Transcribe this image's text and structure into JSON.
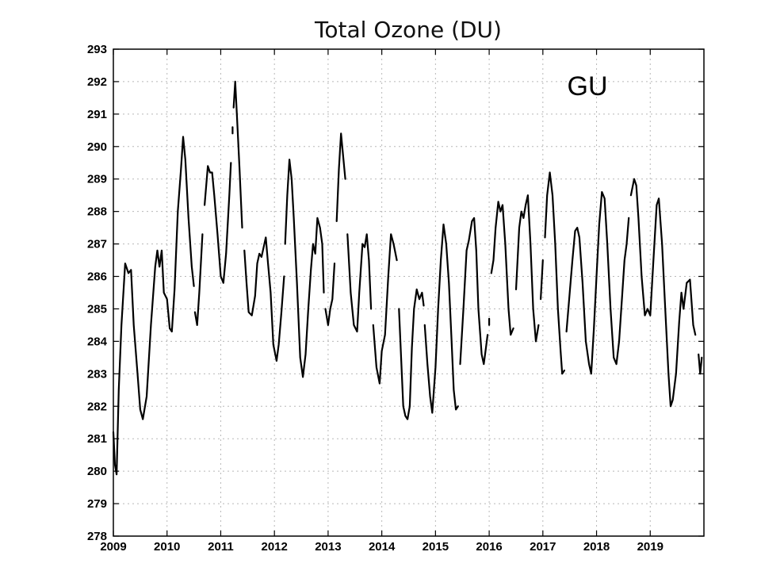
{
  "chart_data": {
    "type": "line",
    "title": "Total Ozone (DU)",
    "xlabel": "",
    "ylabel": "",
    "annotation": "GU",
    "xlim": [
      2009,
      2020
    ],
    "ylim": [
      278,
      293
    ],
    "grid": true,
    "x_ticks": [
      "2009",
      "2010",
      "2011",
      "2012",
      "2013",
      "2014",
      "2015",
      "2016",
      "2017",
      "2018",
      "2019"
    ],
    "y_ticks": [
      "278",
      "279",
      "280",
      "281",
      "282",
      "283",
      "284",
      "285",
      "286",
      "287",
      "288",
      "289",
      "290",
      "291",
      "292",
      "293"
    ],
    "series": [
      {
        "segments": [
          [
            [
              2009.0,
              281.2
            ],
            [
              2009.03,
              280.2
            ],
            [
              2009.06,
              279.9
            ],
            [
              2009.1,
              282.5
            ],
            [
              2009.15,
              284.5
            ],
            [
              2009.22,
              286.4
            ],
            [
              2009.28,
              286.1
            ],
            [
              2009.33,
              286.2
            ],
            [
              2009.38,
              284.5
            ],
            [
              2009.45,
              283.0
            ],
            [
              2009.5,
              281.9
            ],
            [
              2009.55,
              281.6
            ],
            [
              2009.62,
              282.3
            ],
            [
              2009.7,
              284.5
            ],
            [
              2009.78,
              286.3
            ],
            [
              2009.82,
              286.8
            ],
            [
              2009.86,
              286.3
            ],
            [
              2009.9,
              286.8
            ],
            [
              2009.94,
              285.5
            ],
            [
              2010.0,
              285.3
            ],
            [
              2010.05,
              284.4
            ],
            [
              2010.09,
              284.3
            ],
            [
              2010.14,
              285.6
            ],
            [
              2010.2,
              288.0
            ],
            [
              2010.26,
              289.3
            ],
            [
              2010.3,
              290.3
            ],
            [
              2010.34,
              289.6
            ],
            [
              2010.4,
              287.8
            ],
            [
              2010.46,
              286.3
            ],
            [
              2010.5,
              285.7
            ]
          ],
          [
            [
              2010.52,
              284.9
            ],
            [
              2010.56,
              284.5
            ],
            [
              2010.6,
              285.5
            ],
            [
              2010.66,
              287.3
            ]
          ],
          [
            [
              2010.7,
              288.2
            ],
            [
              2010.76,
              289.4
            ],
            [
              2010.8,
              289.2
            ],
            [
              2010.84,
              289.2
            ],
            [
              2010.88,
              288.5
            ],
            [
              2010.94,
              287.3
            ],
            [
              2011.0,
              286.0
            ],
            [
              2011.05,
              285.8
            ],
            [
              2011.1,
              286.7
            ],
            [
              2011.16,
              288.5
            ],
            [
              2011.19,
              289.5
            ]
          ],
          [
            [
              2011.22,
              290.5
            ]
          ],
          [
            [
              2011.24,
              291.2
            ],
            [
              2011.27,
              292.0
            ],
            [
              2011.3,
              291.0
            ],
            [
              2011.35,
              289.3
            ],
            [
              2011.4,
              287.5
            ]
          ],
          [
            [
              2011.44,
              286.8
            ],
            [
              2011.48,
              285.8
            ],
            [
              2011.52,
              284.9
            ],
            [
              2011.58,
              284.8
            ],
            [
              2011.64,
              285.4
            ],
            [
              2011.68,
              286.4
            ],
            [
              2011.72,
              286.7
            ],
            [
              2011.76,
              286.6
            ],
            [
              2011.8,
              286.9
            ],
            [
              2011.84,
              287.2
            ],
            [
              2011.88,
              286.4
            ],
            [
              2011.93,
              285.5
            ],
            [
              2011.98,
              283.9
            ],
            [
              2012.04,
              283.4
            ],
            [
              2012.08,
              283.9
            ],
            [
              2012.13,
              284.9
            ],
            [
              2012.18,
              286.0
            ]
          ],
          [
            [
              2012.2,
              287.0
            ],
            [
              2012.24,
              288.5
            ],
            [
              2012.28,
              289.6
            ],
            [
              2012.32,
              289.0
            ],
            [
              2012.36,
              287.8
            ],
            [
              2012.42,
              285.8
            ],
            [
              2012.48,
              283.5
            ],
            [
              2012.53,
              282.9
            ],
            [
              2012.58,
              283.6
            ],
            [
              2012.63,
              285.0
            ],
            [
              2012.68,
              286.2
            ],
            [
              2012.72,
              287.0
            ],
            [
              2012.76,
              286.7
            ],
            [
              2012.8,
              287.8
            ],
            [
              2012.85,
              287.5
            ],
            [
              2012.89,
              287.0
            ],
            [
              2012.92,
              285.5
            ]
          ],
          [
            [
              2012.95,
              285.0
            ],
            [
              2013.0,
              284.5
            ],
            [
              2013.04,
              285.0
            ],
            [
              2013.08,
              285.3
            ],
            [
              2013.12,
              286.4
            ]
          ],
          [
            [
              2013.16,
              287.7
            ],
            [
              2013.2,
              289.3
            ],
            [
              2013.24,
              290.4
            ],
            [
              2013.28,
              289.7
            ],
            [
              2013.32,
              289.0
            ]
          ],
          [
            [
              2013.36,
              287.3
            ],
            [
              2013.42,
              285.5
            ],
            [
              2013.48,
              284.5
            ],
            [
              2013.54,
              284.3
            ],
            [
              2013.58,
              285.5
            ],
            [
              2013.64,
              287.0
            ],
            [
              2013.68,
              286.9
            ],
            [
              2013.72,
              287.3
            ],
            [
              2013.76,
              286.5
            ],
            [
              2013.8,
              285.0
            ]
          ],
          [
            [
              2013.84,
              284.5
            ],
            [
              2013.9,
              283.2
            ],
            [
              2013.96,
              282.7
            ],
            [
              2014.0,
              283.7
            ],
            [
              2014.06,
              284.2
            ],
            [
              2014.12,
              286.0
            ],
            [
              2014.17,
              287.3
            ],
            [
              2014.22,
              287.0
            ],
            [
              2014.28,
              286.5
            ]
          ],
          [
            [
              2014.32,
              285.0
            ],
            [
              2014.36,
              283.5
            ],
            [
              2014.4,
              282.0
            ],
            [
              2014.44,
              281.7
            ],
            [
              2014.48,
              281.6
            ],
            [
              2014.52,
              282.0
            ],
            [
              2014.56,
              283.8
            ],
            [
              2014.6,
              285.0
            ],
            [
              2014.65,
              285.6
            ],
            [
              2014.7,
              285.3
            ],
            [
              2014.75,
              285.5
            ],
            [
              2014.78,
              285.1
            ]
          ],
          [
            [
              2014.8,
              284.5
            ],
            [
              2014.85,
              283.3
            ],
            [
              2014.9,
              282.3
            ],
            [
              2014.94,
              281.8
            ],
            [
              2015.0,
              283.2
            ],
            [
              2015.05,
              285.0
            ],
            [
              2015.1,
              286.5
            ],
            [
              2015.15,
              287.6
            ],
            [
              2015.2,
              287.0
            ],
            [
              2015.25,
              285.8
            ],
            [
              2015.3,
              284.0
            ],
            [
              2015.34,
              282.5
            ],
            [
              2015.38,
              281.9
            ],
            [
              2015.42,
              282.0
            ]
          ],
          [
            [
              2015.46,
              283.3
            ],
            [
              2015.52,
              285.0
            ],
            [
              2015.58,
              286.8
            ],
            [
              2015.62,
              287.1
            ],
            [
              2015.68,
              287.7
            ],
            [
              2015.72,
              287.8
            ],
            [
              2015.76,
              286.8
            ],
            [
              2015.8,
              285.0
            ],
            [
              2015.86,
              283.6
            ],
            [
              2015.9,
              283.3
            ],
            [
              2015.94,
              283.8
            ],
            [
              2015.97,
              284.2
            ]
          ],
          [
            [
              2016.0,
              284.6
            ]
          ],
          [
            [
              2016.04,
              286.1
            ],
            [
              2016.08,
              286.5
            ],
            [
              2016.12,
              287.5
            ],
            [
              2016.17,
              288.3
            ],
            [
              2016.21,
              288.0
            ],
            [
              2016.25,
              288.2
            ],
            [
              2016.3,
              287.0
            ],
            [
              2016.36,
              285.0
            ],
            [
              2016.4,
              284.2
            ],
            [
              2016.45,
              284.4
            ]
          ],
          [
            [
              2016.5,
              285.6
            ],
            [
              2016.56,
              287.5
            ],
            [
              2016.6,
              288.0
            ],
            [
              2016.64,
              287.8
            ],
            [
              2016.68,
              288.2
            ],
            [
              2016.72,
              288.5
            ],
            [
              2016.77,
              287.0
            ],
            [
              2016.82,
              285.0
            ],
            [
              2016.87,
              284.0
            ],
            [
              2016.92,
              284.5
            ]
          ],
          [
            [
              2016.96,
              285.3
            ],
            [
              2017.0,
              286.5
            ]
          ],
          [
            [
              2017.04,
              287.2
            ],
            [
              2017.08,
              288.5
            ],
            [
              2017.13,
              289.2
            ],
            [
              2017.18,
              288.5
            ],
            [
              2017.23,
              287.0
            ],
            [
              2017.28,
              285.0
            ],
            [
              2017.33,
              283.7
            ],
            [
              2017.36,
              283.0
            ],
            [
              2017.4,
              283.1
            ]
          ],
          [
            [
              2017.44,
              284.3
            ],
            [
              2017.5,
              285.5
            ],
            [
              2017.55,
              286.5
            ],
            [
              2017.6,
              287.4
            ],
            [
              2017.64,
              287.5
            ],
            [
              2017.68,
              287.2
            ],
            [
              2017.74,
              285.8
            ],
            [
              2017.8,
              284.0
            ],
            [
              2017.86,
              283.3
            ],
            [
              2017.9,
              283.0
            ],
            [
              2017.95,
              284.4
            ],
            [
              2018.0,
              286.0
            ],
            [
              2018.05,
              287.6
            ],
            [
              2018.1,
              288.6
            ],
            [
              2018.15,
              288.4
            ],
            [
              2018.2,
              287.0
            ],
            [
              2018.26,
              285.0
            ],
            [
              2018.32,
              283.5
            ],
            [
              2018.37,
              283.3
            ],
            [
              2018.42,
              284.0
            ],
            [
              2018.48,
              285.5
            ],
            [
              2018.52,
              286.5
            ],
            [
              2018.56,
              287.0
            ],
            [
              2018.6,
              287.8
            ]
          ],
          [
            [
              2018.64,
              288.5
            ],
            [
              2018.7,
              289.0
            ],
            [
              2018.74,
              288.8
            ],
            [
              2018.78,
              287.8
            ],
            [
              2018.84,
              286.0
            ],
            [
              2018.9,
              284.8
            ],
            [
              2018.95,
              285.0
            ],
            [
              2019.0,
              284.8
            ],
            [
              2019.06,
              286.5
            ],
            [
              2019.12,
              288.2
            ],
            [
              2019.16,
              288.4
            ],
            [
              2019.22,
              287.0
            ],
            [
              2019.28,
              285.0
            ],
            [
              2019.34,
              283.0
            ],
            [
              2019.38,
              282.0
            ],
            [
              2019.42,
              282.2
            ],
            [
              2019.48,
              283.0
            ],
            [
              2019.54,
              284.6
            ],
            [
              2019.58,
              285.5
            ],
            [
              2019.62,
              285.0
            ],
            [
              2019.68,
              285.8
            ],
            [
              2019.74,
              285.9
            ],
            [
              2019.8,
              284.5
            ],
            [
              2019.84,
              284.2
            ]
          ],
          [
            [
              2019.9,
              283.6
            ],
            [
              2019.93,
              283.0
            ],
            [
              2019.96,
              283.5
            ]
          ]
        ]
      }
    ]
  }
}
